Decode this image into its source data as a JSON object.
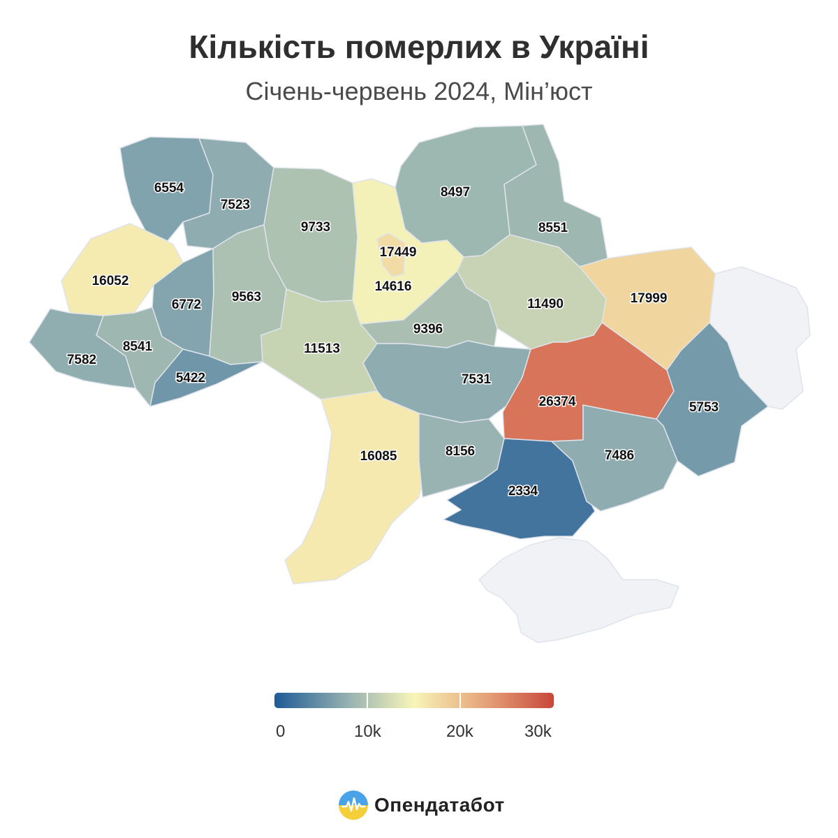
{
  "header": {
    "title": "Кількість померлих в Україні",
    "subtitle": "Січень-червень 2024, Мін’юст"
  },
  "colors": {
    "no_data": "#f1f2f6",
    "scale": [
      "#1f5a96",
      "#8fadb0",
      "#f8f5b8",
      "#e6a47a",
      "#c8473b"
    ]
  },
  "legend": {
    "ticks": [
      "0",
      "10k",
      "20k",
      "30k"
    ],
    "scale_max": 30000
  },
  "map_data": {
    "unit": "deaths",
    "regions": [
      {
        "id": "volyn",
        "value": 6554,
        "label": "6554"
      },
      {
        "id": "rivne",
        "value": 7523,
        "label": "7523"
      },
      {
        "id": "zhytomyr",
        "value": 9733,
        "label": "9733"
      },
      {
        "id": "kyiv-oblast",
        "value": 14616,
        "label": "14616"
      },
      {
        "id": "kyiv-city",
        "value": 17449,
        "label": "17449"
      },
      {
        "id": "chernihiv",
        "value": 8497,
        "label": "8497"
      },
      {
        "id": "sumy",
        "value": 8551,
        "label": "8551"
      },
      {
        "id": "lviv",
        "value": 16052,
        "label": "16052"
      },
      {
        "id": "ternopil",
        "value": 6772,
        "label": "6772"
      },
      {
        "id": "khmelnytskyi",
        "value": 9563,
        "label": "9563"
      },
      {
        "id": "cherkasy",
        "value": 9396,
        "label": "9396"
      },
      {
        "id": "poltava",
        "value": 11490,
        "label": "11490"
      },
      {
        "id": "kharkiv",
        "value": 17999,
        "label": "17999"
      },
      {
        "id": "zakarpattia",
        "value": 7582,
        "label": "7582"
      },
      {
        "id": "ivano-frankivsk",
        "value": 8541,
        "label": "8541"
      },
      {
        "id": "chernivtsi",
        "value": 5422,
        "label": "5422"
      },
      {
        "id": "vinnytsia",
        "value": 11513,
        "label": "11513"
      },
      {
        "id": "kirovohrad",
        "value": 7531,
        "label": "7531"
      },
      {
        "id": "dnipropetrovsk",
        "value": 26374,
        "label": "26374"
      },
      {
        "id": "donetsk",
        "value": 5753,
        "label": "5753"
      },
      {
        "id": "odesa",
        "value": 16085,
        "label": "16085"
      },
      {
        "id": "mykolaiv",
        "value": 8156,
        "label": "8156"
      },
      {
        "id": "kherson",
        "value": 2334,
        "label": "2334"
      },
      {
        "id": "zaporizhzhia",
        "value": 7486,
        "label": "7486"
      },
      {
        "id": "luhansk",
        "value": null,
        "label": ""
      },
      {
        "id": "crimea",
        "value": null,
        "label": ""
      }
    ]
  },
  "brand": {
    "name": "Опендатабот"
  }
}
